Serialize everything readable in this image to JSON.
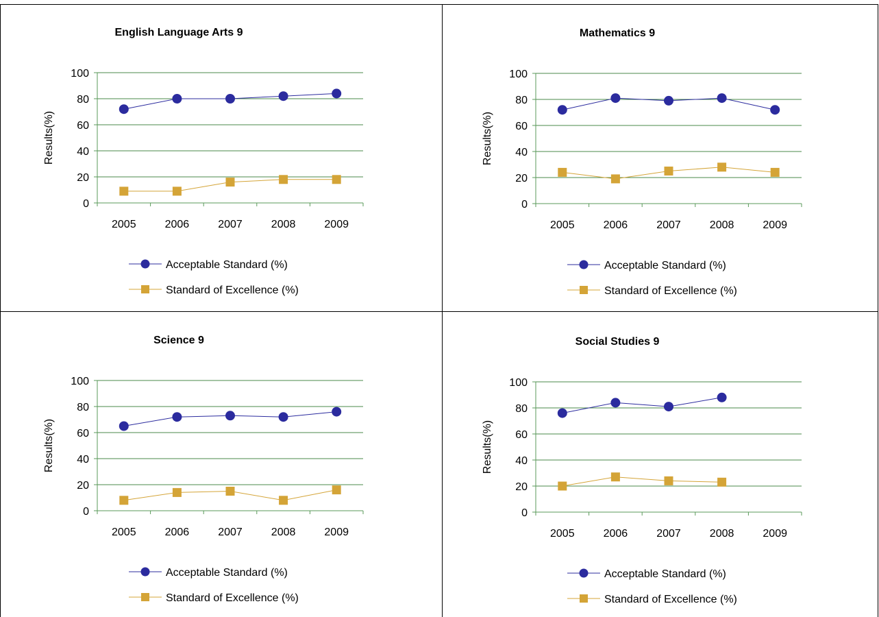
{
  "colors": {
    "acceptable": "#2b2b9e",
    "excellence": "#d4a437",
    "grid": "#4a8a4a",
    "axis": "#5a9a5a",
    "top_text": "#1f1fbf"
  },
  "chart_data": [
    {
      "type": "line",
      "title": "English Language Arts 9",
      "ylabel": "Results(%)",
      "categories": [
        "2005",
        "2006",
        "2007",
        "2008",
        "2009"
      ],
      "ylim": [
        0,
        100
      ],
      "yticks": [
        "0",
        "20",
        "40",
        "60",
        "80",
        "100"
      ],
      "grid": true,
      "legend": "bottom",
      "series": [
        {
          "name": "Acceptable Standard (%)",
          "marker": "circle",
          "values": [
            72,
            80,
            80,
            82,
            84
          ]
        },
        {
          "name": "Standard of Excellence (%)",
          "marker": "square",
          "values": [
            9,
            9,
            16,
            18,
            18
          ]
        }
      ]
    },
    {
      "type": "line",
      "title": "Mathematics 9",
      "ylabel": "Results(%)",
      "categories": [
        "2005",
        "2006",
        "2007",
        "2008",
        "2009"
      ],
      "ylim": [
        0,
        100
      ],
      "yticks": [
        "0",
        "20",
        "40",
        "60",
        "80",
        "100"
      ],
      "grid": true,
      "legend": "bottom",
      "series": [
        {
          "name": "Acceptable Standard (%)",
          "marker": "circle",
          "values": [
            72,
            81,
            79,
            81,
            72
          ]
        },
        {
          "name": "Standard of Excellence (%)",
          "marker": "square",
          "values": [
            24,
            19,
            25,
            28,
            24
          ]
        }
      ]
    },
    {
      "type": "line",
      "title": "Science 9",
      "ylabel": "Results(%)",
      "categories": [
        "2005",
        "2006",
        "2007",
        "2008",
        "2009"
      ],
      "ylim": [
        0,
        100
      ],
      "yticks": [
        "0",
        "20",
        "40",
        "60",
        "80",
        "100"
      ],
      "grid": true,
      "legend": "bottom",
      "series": [
        {
          "name": "Acceptable Standard (%)",
          "marker": "circle",
          "values": [
            65,
            72,
            73,
            72,
            76
          ]
        },
        {
          "name": "Standard of Excellence (%)",
          "marker": "square",
          "values": [
            8,
            14,
            15,
            8,
            16
          ]
        }
      ]
    },
    {
      "type": "line",
      "title": "Social Studies 9",
      "ylabel": "Results(%)",
      "categories": [
        "2005",
        "2006",
        "2007",
        "2008",
        "2009"
      ],
      "ylim": [
        0,
        100
      ],
      "yticks": [
        "0",
        "20",
        "40",
        "60",
        "80",
        "100"
      ],
      "grid": true,
      "legend": "bottom",
      "series": [
        {
          "name": "Acceptable Standard (%)",
          "marker": "circle",
          "values": [
            76,
            84,
            81,
            88,
            null
          ]
        },
        {
          "name": "Standard of Excellence (%)",
          "marker": "square",
          "values": [
            20,
            27,
            24,
            23,
            null
          ]
        }
      ]
    }
  ]
}
